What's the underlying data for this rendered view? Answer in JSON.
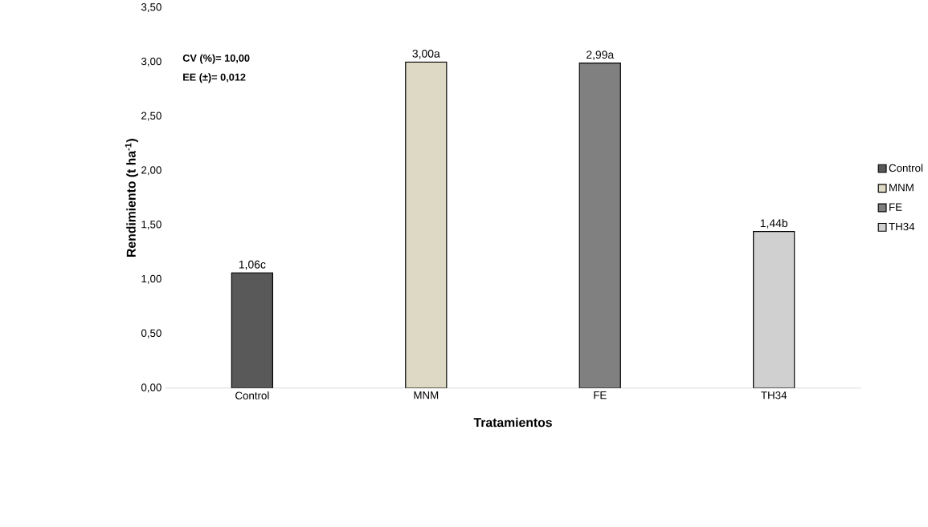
{
  "chart_data": {
    "type": "bar",
    "xlabel": "Tratamientos",
    "ylabel": "Rendimiento (t ha$^{-1}$)",
    "categories": [
      "Control",
      "MNM",
      "FE",
      "TH34"
    ],
    "series": [
      {
        "name": "Control",
        "color": "#595959",
        "values": [
          1.06,
          null,
          null,
          null
        ],
        "value_labels": [
          "1,06c",
          null,
          null,
          null
        ]
      },
      {
        "name": "MNM",
        "color": "#ddd9c4",
        "values": [
          null,
          3.0,
          null,
          null
        ],
        "value_labels": [
          null,
          "3,00a",
          null,
          null
        ]
      },
      {
        "name": "FE",
        "color": "#808080",
        "values": [
          null,
          null,
          2.99,
          null
        ],
        "value_labels": [
          null,
          null,
          "2,99a",
          null
        ]
      },
      {
        "name": "TH34",
        "color": "#d0d0d0",
        "values": [
          null,
          null,
          null,
          1.44
        ],
        "value_labels": [
          null,
          null,
          null,
          "1,44b"
        ]
      }
    ],
    "ylim": [
      0,
      3.5
    ],
    "yticks": [
      {
        "value": 0,
        "label": "0,00"
      },
      {
        "value": 0.5,
        "label": "0,50"
      },
      {
        "value": 1,
        "label": "1,00"
      },
      {
        "value": 1.5,
        "label": "1,50"
      },
      {
        "value": 2,
        "label": "2,00"
      },
      {
        "value": 2.5,
        "label": "2,50"
      },
      {
        "value": 3,
        "label": "3,00"
      },
      {
        "value": 3.5,
        "label": "3,50"
      }
    ],
    "annotations": [
      "CV (%)= 10,00",
      "EE (±)= 0,012"
    ],
    "grid": false,
    "legend": "right"
  }
}
